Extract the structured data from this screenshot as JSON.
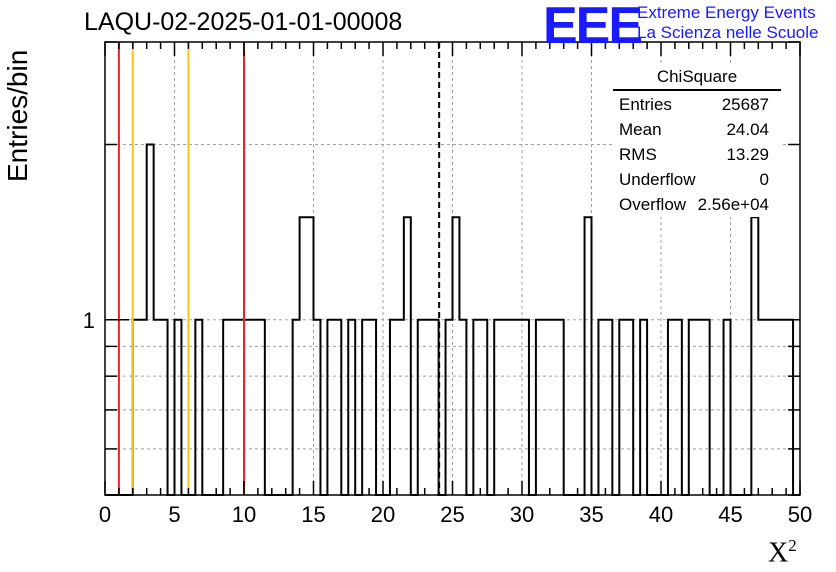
{
  "title": "LAQU-02-2025-01-01-00008",
  "logo": {
    "mark": "EEE",
    "line1": "Extreme Energy Events",
    "line2": "La Scienza nelle Scuole",
    "color": "#1a1aff"
  },
  "stats": {
    "name": "ChiSquare",
    "rows": [
      {
        "label": "Entries",
        "value": "25687"
      },
      {
        "label": "Mean",
        "value": "24.04"
      },
      {
        "label": "RMS",
        "value": "13.29"
      },
      {
        "label": "Underflow",
        "value": "0"
      },
      {
        "label": "Overflow",
        "value": "2.56e+04"
      }
    ]
  },
  "chart_data": {
    "type": "histogram",
    "ylabel": "Entries/bin",
    "xlabel_base": "X",
    "xlabel_exp": "2",
    "xlim": [
      0,
      50
    ],
    "ylim": [
      0.5,
      3
    ],
    "yscale": "log",
    "ytick_labels": [
      {
        "value": 1,
        "label": "1"
      }
    ],
    "xticks": [
      0,
      5,
      10,
      15,
      20,
      25,
      30,
      35,
      40,
      45,
      50
    ],
    "grid": true,
    "bin_width": 0.5,
    "bins": [
      {
        "x": 2.0,
        "y": 1
      },
      {
        "x": 2.5,
        "y": 1
      },
      {
        "x": 3.0,
        "y": 2
      },
      {
        "x": 3.5,
        "y": 1
      },
      {
        "x": 4.0,
        "y": 1
      },
      {
        "x": 5.0,
        "y": 1
      },
      {
        "x": 6.5,
        "y": 1
      },
      {
        "x": 8.5,
        "y": 1
      },
      {
        "x": 9.0,
        "y": 1
      },
      {
        "x": 9.5,
        "y": 1
      },
      {
        "x": 10.0,
        "y": 1
      },
      {
        "x": 10.5,
        "y": 1
      },
      {
        "x": 11.0,
        "y": 1
      },
      {
        "x": 13.5,
        "y": 1
      },
      {
        "x": 14.0,
        "y": 1.5
      },
      {
        "x": 14.5,
        "y": 1.5
      },
      {
        "x": 15.0,
        "y": 1
      },
      {
        "x": 16.0,
        "y": 1
      },
      {
        "x": 16.5,
        "y": 1
      },
      {
        "x": 17.5,
        "y": 1
      },
      {
        "x": 18.5,
        "y": 1
      },
      {
        "x": 19.0,
        "y": 1
      },
      {
        "x": 20.5,
        "y": 1
      },
      {
        "x": 21.0,
        "y": 1
      },
      {
        "x": 21.5,
        "y": 1.5
      },
      {
        "x": 22.5,
        "y": 1
      },
      {
        "x": 23.0,
        "y": 1
      },
      {
        "x": 23.5,
        "y": 1
      },
      {
        "x": 24.5,
        "y": 1
      },
      {
        "x": 25.0,
        "y": 1.5
      },
      {
        "x": 25.5,
        "y": 1
      },
      {
        "x": 26.5,
        "y": 1
      },
      {
        "x": 27.0,
        "y": 1
      },
      {
        "x": 28.0,
        "y": 1
      },
      {
        "x": 28.5,
        "y": 1
      },
      {
        "x": 29.0,
        "y": 1
      },
      {
        "x": 29.5,
        "y": 1
      },
      {
        "x": 30.0,
        "y": 1
      },
      {
        "x": 31.0,
        "y": 1
      },
      {
        "x": 31.5,
        "y": 1
      },
      {
        "x": 32.0,
        "y": 1
      },
      {
        "x": 32.5,
        "y": 1
      },
      {
        "x": 34.5,
        "y": 1.5
      },
      {
        "x": 35.5,
        "y": 1
      },
      {
        "x": 36.0,
        "y": 1
      },
      {
        "x": 37.0,
        "y": 1
      },
      {
        "x": 37.5,
        "y": 1
      },
      {
        "x": 38.5,
        "y": 1
      },
      {
        "x": 40.5,
        "y": 1
      },
      {
        "x": 41.0,
        "y": 1
      },
      {
        "x": 42.0,
        "y": 1
      },
      {
        "x": 42.5,
        "y": 1
      },
      {
        "x": 43.0,
        "y": 1
      },
      {
        "x": 44.5,
        "y": 1
      },
      {
        "x": 46.5,
        "y": 1.5
      },
      {
        "x": 47.0,
        "y": 1
      },
      {
        "x": 47.5,
        "y": 1
      },
      {
        "x": 48.0,
        "y": 1
      },
      {
        "x": 48.5,
        "y": 1
      },
      {
        "x": 49.0,
        "y": 1
      }
    ],
    "vertical_lines": [
      {
        "x": 1,
        "color": "#e8242b",
        "style": "solid"
      },
      {
        "x": 2,
        "color": "#f5c518",
        "style": "solid"
      },
      {
        "x": 6,
        "color": "#f5c518",
        "style": "solid"
      },
      {
        "x": 10,
        "color": "#e8242b",
        "style": "solid"
      },
      {
        "x": 24.04,
        "color": "#000000",
        "style": "dashed"
      }
    ]
  }
}
